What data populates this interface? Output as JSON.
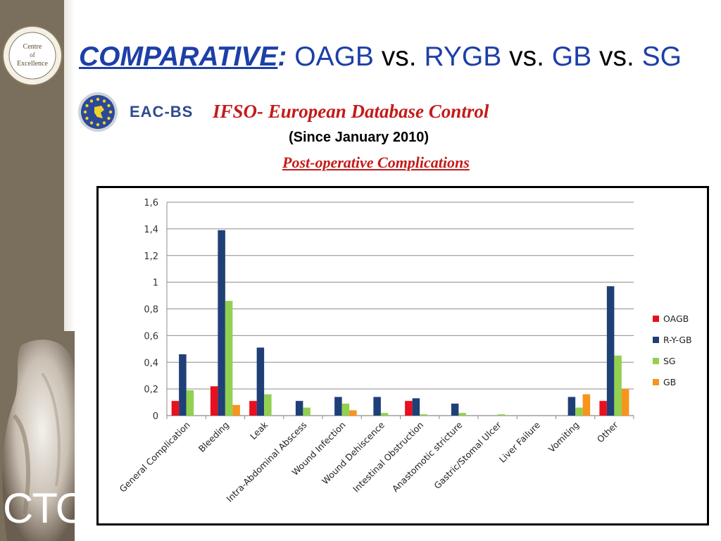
{
  "slide": {
    "title_keyword": "COMPARATIVE",
    "title_colon": ":",
    "title_rest": [
      {
        "text": " OAGB",
        "kind": "proc"
      },
      {
        "text": " vs.",
        "kind": "vs"
      },
      {
        "text": " RYGB",
        "kind": "proc"
      },
      {
        "text": " vs.",
        "kind": "vs"
      },
      {
        "text": " GB",
        "kind": "proc"
      },
      {
        "text": " vs.",
        "kind": "vs"
      },
      {
        "text": " SG",
        "kind": "proc"
      }
    ],
    "eac_label": "EAC-BS",
    "database_title": "IFSO- European Database Control",
    "since": "(Since January 2010)",
    "chart_title": "Post-operative Complications",
    "seal_text": "Centre of Excellence",
    "watermark": "CTO"
  },
  "colors": {
    "title_blue": "#1d3fa7",
    "red_heading": "#c41a1a",
    "OAGB": "#e8101e",
    "R-Y-GB": "#1f3f77",
    "SG": "#92d050",
    "GB": "#f7941d"
  },
  "chart_data": {
    "type": "bar",
    "categories": [
      "General Complication",
      "Bleeding",
      "Leak",
      "Intra-Abdominal Abscess",
      "Wound Infection",
      "Wound Dehiscence",
      "Intestinal Obstruction",
      "Anastomotic stricture",
      "Gastric/Stomal Ulcer",
      "Liver Failure",
      "Vomiting",
      "Other"
    ],
    "series": [
      {
        "name": "OAGB",
        "values": [
          0.11,
          0.22,
          0.11,
          0,
          0,
          0,
          0.11,
          0,
          0,
          0,
          0,
          0.11
        ]
      },
      {
        "name": "R-Y-GB",
        "values": [
          0.46,
          1.39,
          0.51,
          0.11,
          0.14,
          0.14,
          0.13,
          0.09,
          0,
          0,
          0.14,
          0.97
        ]
      },
      {
        "name": "SG",
        "values": [
          0.19,
          0.86,
          0.16,
          0.06,
          0.09,
          0.02,
          0.01,
          0.02,
          0.01,
          0,
          0.06,
          0.45
        ]
      },
      {
        "name": "GB",
        "values": [
          0,
          0.08,
          0,
          0,
          0.04,
          0,
          0,
          0,
          0,
          0,
          0.16,
          0.2
        ]
      }
    ],
    "ylim": [
      0,
      1.6
    ],
    "yticks": [
      "0",
      "0,2",
      "0,4",
      "0,6",
      "0,8",
      "1",
      "1,2",
      "1,4",
      "1,6"
    ],
    "grid": true,
    "legend": "right",
    "xlabel": "",
    "ylabel": ""
  }
}
